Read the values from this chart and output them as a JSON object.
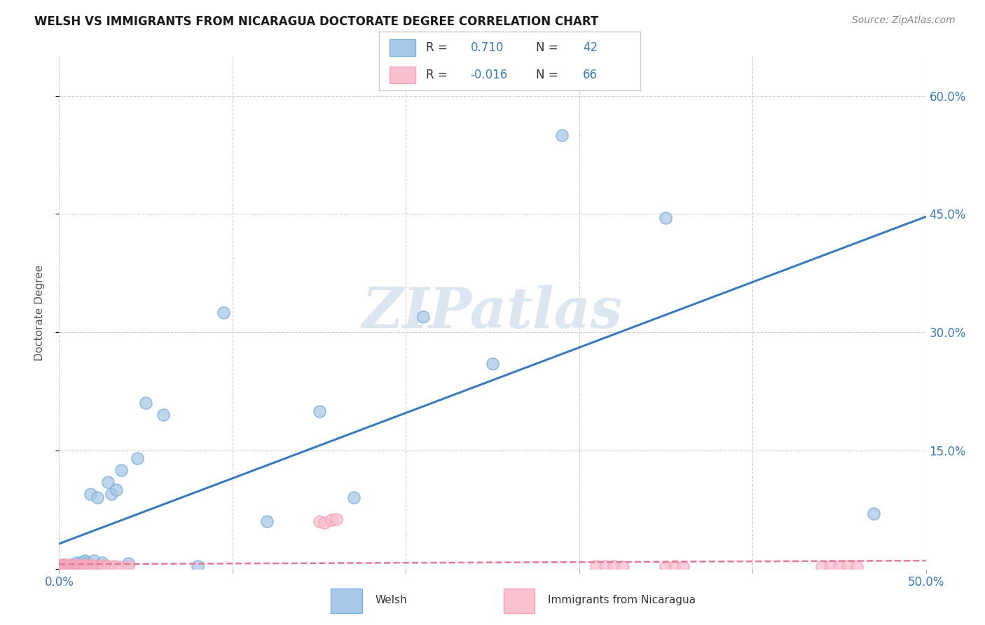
{
  "title": "WELSH VS IMMIGRANTS FROM NICARAGUA DOCTORATE DEGREE CORRELATION CHART",
  "source": "Source: ZipAtlas.com",
  "ylabel": "Doctorate Degree",
  "xlim": [
    0.0,
    0.5
  ],
  "ylim": [
    0.0,
    0.65
  ],
  "ytick_vals": [
    0.0,
    0.15,
    0.3,
    0.45,
    0.6
  ],
  "xtick_vals": [
    0.0,
    0.1,
    0.2,
    0.3,
    0.4,
    0.5
  ],
  "welsh_color": "#a8c8e8",
  "welsh_edge_color": "#7bafd4",
  "nicaragua_color": "#f9c0cf",
  "nicaragua_edge_color": "#f4a0b8",
  "welsh_line_color": "#3a7abf",
  "nicaragua_line_color": "#e87898",
  "welsh_R": 0.71,
  "welsh_N": 42,
  "nicaragua_R": -0.016,
  "nicaragua_N": 66,
  "welsh_x": [
    0.001,
    0.002,
    0.002,
    0.003,
    0.003,
    0.004,
    0.004,
    0.005,
    0.006,
    0.006,
    0.007,
    0.007,
    0.008,
    0.009,
    0.01,
    0.01,
    0.012,
    0.013,
    0.015,
    0.016,
    0.018,
    0.02,
    0.022,
    0.025,
    0.028,
    0.03,
    0.033,
    0.036,
    0.04,
    0.045,
    0.05,
    0.06,
    0.08,
    0.095,
    0.12,
    0.15,
    0.17,
    0.21,
    0.25,
    0.29,
    0.35,
    0.47
  ],
  "welsh_y": [
    0.002,
    0.003,
    0.004,
    0.002,
    0.005,
    0.003,
    0.004,
    0.003,
    0.004,
    0.002,
    0.003,
    0.005,
    0.004,
    0.003,
    0.005,
    0.008,
    0.006,
    0.009,
    0.01,
    0.008,
    0.095,
    0.01,
    0.09,
    0.008,
    0.11,
    0.095,
    0.1,
    0.125,
    0.007,
    0.14,
    0.21,
    0.195,
    0.003,
    0.325,
    0.06,
    0.2,
    0.09,
    0.32,
    0.26,
    0.55,
    0.445,
    0.07
  ],
  "nicaragua_x": [
    0.001,
    0.001,
    0.002,
    0.002,
    0.003,
    0.003,
    0.003,
    0.004,
    0.004,
    0.005,
    0.005,
    0.006,
    0.006,
    0.007,
    0.007,
    0.008,
    0.008,
    0.009,
    0.009,
    0.01,
    0.01,
    0.011,
    0.011,
    0.012,
    0.012,
    0.013,
    0.013,
    0.014,
    0.015,
    0.015,
    0.016,
    0.016,
    0.017,
    0.018,
    0.018,
    0.019,
    0.02,
    0.02,
    0.021,
    0.022,
    0.023,
    0.024,
    0.025,
    0.025,
    0.026,
    0.028,
    0.03,
    0.032,
    0.035,
    0.04,
    0.15,
    0.153,
    0.157,
    0.16,
    0.31,
    0.315,
    0.32,
    0.325,
    0.35,
    0.355,
    0.36,
    0.44,
    0.445,
    0.45,
    0.455,
    0.46
  ],
  "nicaragua_y": [
    0.003,
    0.005,
    0.004,
    0.002,
    0.005,
    0.003,
    0.004,
    0.003,
    0.004,
    0.003,
    0.004,
    0.003,
    0.005,
    0.003,
    0.004,
    0.002,
    0.004,
    0.003,
    0.004,
    0.002,
    0.004,
    0.003,
    0.005,
    0.002,
    0.004,
    0.003,
    0.004,
    0.002,
    0.003,
    0.004,
    0.002,
    0.004,
    0.003,
    0.002,
    0.004,
    0.003,
    0.002,
    0.004,
    0.002,
    0.003,
    0.002,
    0.003,
    0.002,
    0.004,
    0.002,
    0.003,
    0.002,
    0.003,
    0.002,
    0.003,
    0.06,
    0.058,
    0.062,
    0.063,
    0.003,
    0.003,
    0.003,
    0.002,
    0.002,
    0.003,
    0.002,
    0.002,
    0.003,
    0.002,
    0.003,
    0.002
  ],
  "background_color": "#ffffff",
  "grid_color": "#cccccc",
  "watermark_text": "ZIPatlas",
  "watermark_color": "#dce6f0"
}
